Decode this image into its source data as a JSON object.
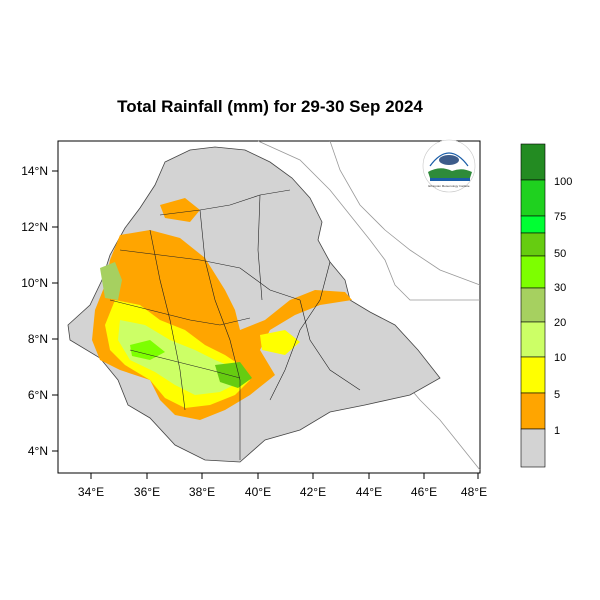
{
  "title": "Total Rainfall (mm) for 29-30 Sep 2024",
  "axes": {
    "lat_ticks": [
      "14°N",
      "12°N",
      "10°N",
      "8°N",
      "6°N",
      "4°N"
    ],
    "lon_ticks": [
      "34°E",
      "36°E",
      "38°E",
      "40°E",
      "42°E",
      "44°E",
      "46°E",
      "48°E"
    ],
    "lat_range": [
      3.2,
      15.0
    ],
    "lon_range": [
      33.0,
      48.2
    ]
  },
  "colorbar": {
    "labels": [
      "100",
      "75",
      "50",
      "30",
      "20",
      "10",
      "5",
      "1"
    ],
    "colors": [
      "#238b22",
      "#1fd11f",
      "#00ff33",
      "#66cc11",
      "#7dff00",
      "#a6d060",
      "#ccff66",
      "#ffff00",
      "#ffa500",
      "#d3d3d3"
    ]
  },
  "logo": {
    "name": "ethiopian-meteorology-institute-logo",
    "text": "Ethiopian Meteorology Institute"
  }
}
